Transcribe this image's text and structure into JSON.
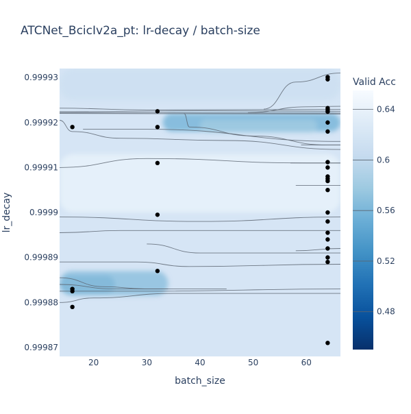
{
  "chart_data": {
    "type": "contour",
    "title": "ATCNet_BcicIv2a_pt: lr-decay / batch-size",
    "xlabel": "batch_size",
    "ylabel": "lr_decay",
    "xlim": [
      13.6,
      66.4
    ],
    "ylim": [
      0.999868,
      0.999932
    ],
    "x_ticks": [
      20,
      30,
      40,
      50,
      60
    ],
    "x_tick_labels": [
      "20",
      "30",
      "40",
      "50",
      "60"
    ],
    "y_ticks": [
      0.99987,
      0.99988,
      0.99989,
      0.9999,
      0.99991,
      0.99992,
      0.99993
    ],
    "y_tick_labels": [
      "0.99987",
      "0.99988",
      "0.99989",
      "0.9999",
      "0.99991",
      "0.99992",
      "0.99993"
    ],
    "colorbar": {
      "title": "Valid Acc",
      "min": 0.45,
      "max": 0.655,
      "ticks": [
        0.48,
        0.52,
        0.56,
        0.6,
        0.64
      ],
      "tick_labels": [
        "0.48",
        "0.52",
        "0.56",
        "0.6",
        "0.64"
      ],
      "colorscale": [
        "#08306b",
        "#08519c",
        "#2171b5",
        "#4292c6",
        "#6baed6",
        "#9ecae1",
        "#c6dbef",
        "#deebf7",
        "#f7fbff"
      ]
    },
    "background_color": "#d6e5f5",
    "points": [
      {
        "x": 16,
        "y": 0.999919
      },
      {
        "x": 16,
        "y": 0.999883
      },
      {
        "x": 16,
        "y": 0.9998825
      },
      {
        "x": 16,
        "y": 0.999879
      },
      {
        "x": 32,
        "y": 0.9999225
      },
      {
        "x": 32,
        "y": 0.999919
      },
      {
        "x": 32,
        "y": 0.999911
      },
      {
        "x": 32,
        "y": 0.9998995
      },
      {
        "x": 32,
        "y": 0.999887
      },
      {
        "x": 64,
        "y": 0.9999301
      },
      {
        "x": 64,
        "y": 0.9999296
      },
      {
        "x": 64,
        "y": 0.9999232
      },
      {
        "x": 64,
        "y": 0.9999228
      },
      {
        "x": 64,
        "y": 0.9999224
      },
      {
        "x": 64,
        "y": 0.99992
      },
      {
        "x": 64,
        "y": 0.999918
      },
      {
        "x": 64,
        "y": 0.9999112
      },
      {
        "x": 64,
        "y": 0.99991
      },
      {
        "x": 64,
        "y": 0.999908
      },
      {
        "x": 64,
        "y": 0.9999075
      },
      {
        "x": 64,
        "y": 0.999907
      },
      {
        "x": 64,
        "y": 0.999905
      },
      {
        "x": 64,
        "y": 0.9999
      },
      {
        "x": 64,
        "y": 0.999898
      },
      {
        "x": 64,
        "y": 0.9998955
      },
      {
        "x": 64,
        "y": 0.999894
      },
      {
        "x": 64,
        "y": 0.999892
      },
      {
        "x": 64,
        "y": 0.99989
      },
      {
        "x": 64,
        "y": 0.999889
      },
      {
        "x": 64,
        "y": 0.999871
      }
    ],
    "colored_regions": [
      {
        "xmin": 33,
        "xmax": 66.4,
        "ymin": 0.999918,
        "ymax": 0.999922,
        "value": 0.56
      },
      {
        "xmin": 40,
        "xmax": 62,
        "ymin": 0.9999178,
        "ymax": 0.9999206,
        "value": 0.58
      },
      {
        "xmin": 13.6,
        "xmax": 24,
        "ymin": 0.999882,
        "ymax": 0.999886,
        "value": 0.52
      },
      {
        "xmin": 13.6,
        "xmax": 34,
        "ymin": 0.9998815,
        "ymax": 0.999887,
        "value": 0.57
      },
      {
        "xmin": 13.6,
        "xmax": 66.4,
        "ymin": 0.9999,
        "ymax": 0.999913,
        "value": 0.64
      },
      {
        "xmin": 13.6,
        "xmax": 66.4,
        "ymin": 0.999925,
        "ymax": 0.999932,
        "value": 0.61
      }
    ],
    "contour_lines": [
      [
        [
          13.6,
          0.9999224
        ],
        [
          40,
          0.9999226
        ],
        [
          66.4,
          0.9999225
        ]
      ],
      [
        [
          13.6,
          0.9999222
        ],
        [
          66.4,
          0.9999221
        ]
      ],
      [
        [
          13.6,
          0.999922
        ],
        [
          66.4,
          0.9999219
        ]
      ],
      [
        [
          13.6,
          0.9999232
        ],
        [
          30,
          0.9999228
        ],
        [
          66.4,
          0.9999229
        ]
      ],
      [
        [
          52,
          0.999923
        ],
        [
          58,
          0.999929
        ],
        [
          66.4,
          0.999931
        ]
      ],
      [
        [
          49,
          0.9999222
        ],
        [
          60,
          0.9999235
        ],
        [
          66.4,
          0.9999236
        ]
      ],
      [
        [
          37,
          0.999922
        ],
        [
          38,
          0.999919
        ],
        [
          50,
          0.999917
        ],
        [
          64,
          0.999915
        ],
        [
          66.4,
          0.999915
        ]
      ],
      [
        [
          13.6,
          0.9999205
        ],
        [
          16,
          0.999918
        ],
        [
          25,
          0.9999165
        ],
        [
          45,
          0.999916
        ],
        [
          66.4,
          0.999914
        ]
      ],
      [
        [
          18,
          0.9999185
        ],
        [
          30,
          0.9999185
        ],
        [
          66.4,
          0.9999158
        ]
      ],
      [
        [
          13.6,
          0.99991
        ],
        [
          30,
          0.999912
        ],
        [
          60,
          0.999911
        ],
        [
          66.4,
          0.999911
        ]
      ],
      [
        [
          13.6,
          0.999899
        ],
        [
          40,
          0.999898
        ],
        [
          66.4,
          0.999899
        ]
      ],
      [
        [
          13.6,
          0.9998955
        ],
        [
          25,
          0.999896
        ],
        [
          66.4,
          0.999896
        ]
      ],
      [
        [
          30,
          0.999893
        ],
        [
          40,
          0.999891
        ],
        [
          66.4,
          0.999891
        ]
      ],
      [
        [
          13.6,
          0.999889
        ],
        [
          28,
          0.999889
        ],
        [
          38,
          0.999888
        ],
        [
          66.4,
          0.9998885
        ]
      ],
      [
        [
          13.6,
          0.9998855
        ],
        [
          22,
          0.9998835
        ],
        [
          30,
          0.999883
        ],
        [
          45,
          0.999883
        ]
      ],
      [
        [
          13.6,
          0.999884
        ],
        [
          24,
          0.999883
        ],
        [
          34,
          0.999883
        ]
      ],
      [
        [
          13.6,
          0.9998825
        ],
        [
          30,
          0.9998825
        ],
        [
          66.4,
          0.999883
        ]
      ],
      [
        [
          13.6,
          0.99988
        ],
        [
          20,
          0.999881
        ],
        [
          35,
          0.999882
        ],
        [
          66.4,
          0.999882
        ]
      ],
      [
        [
          59,
          0.999915
        ],
        [
          66.4,
          0.999915
        ]
      ],
      [
        [
          57,
          0.999911
        ],
        [
          66.4,
          0.999911
        ]
      ],
      [
        [
          58,
          0.999906
        ],
        [
          66.4,
          0.999906
        ]
      ],
      [
        [
          58,
          0.9998915
        ],
        [
          66.4,
          0.999892
        ]
      ]
    ]
  }
}
